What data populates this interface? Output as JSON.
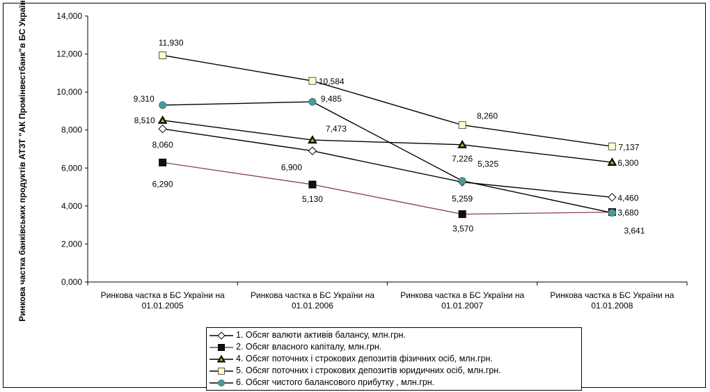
{
  "chart_data": {
    "type": "line",
    "ylabel": "Ринкова частка банківських продуктів АТЗТ \"АК Промінвестбанк\"в БС України в %",
    "xlabel": "",
    "ylim": [
      0,
      14
    ],
    "yticks": [
      "0,000",
      "2,000",
      "4,000",
      "6,000",
      "8,000",
      "10,000",
      "12,000",
      "14,000"
    ],
    "categories": [
      [
        "Ринкова частка в БС України на",
        "01.01.2005"
      ],
      [
        "Ринкова частка в БС України на",
        "01.01.2006"
      ],
      [
        "Ринкова частка в БС України на",
        "01.01.2007"
      ],
      [
        "Ринкова частка в БС України на",
        "01.01.2008"
      ]
    ],
    "series": [
      {
        "name": "1. Обсяг валюти активів балансу, млн.грн.",
        "values": [
          8.06,
          6.9,
          5.259,
          4.46
        ],
        "labels": [
          "8,060",
          "6,900",
          "5,259",
          "4,460"
        ],
        "line_color": "#000000",
        "marker": "diamond",
        "marker_fill": "#ffffff"
      },
      {
        "name": "2. Обсяг власного капіталу, млн.грн.",
        "values": [
          6.29,
          5.13,
          3.57,
          3.68
        ],
        "labels": [
          "6,290",
          "5,130",
          "3,570",
          "3,680"
        ],
        "line_color": "#8b3a62",
        "marker": "square",
        "marker_fill": "#111111"
      },
      {
        "name": "4. Обсяг поточних і строкових депозитів фізичних осіб, млн.грн.",
        "values": [
          8.51,
          7.473,
          7.226,
          6.3
        ],
        "labels": [
          "8,510",
          "7,473",
          "7,226",
          "6,300"
        ],
        "line_color": "#000000",
        "marker": "triangle",
        "marker_fill": "#1a1a1a",
        "marker_inner": "#c8c800"
      },
      {
        "name": "5. Обсяг поточних і строкових депозитів юридичних осіб, млн.грн.",
        "values": [
          11.93,
          10.584,
          8.26,
          7.137
        ],
        "labels": [
          "11,930",
          "10,584",
          "8,260",
          "7,137"
        ],
        "line_color": "#000000",
        "marker": "square",
        "marker_fill": "#ffffcc"
      },
      {
        "name": "6. Обсяг чистого балансового прибутку , млн.грн.",
        "values": [
          9.31,
          9.485,
          5.325,
          3.641
        ],
        "labels": [
          "9,310",
          "9,485",
          "5,325",
          "3,641"
        ],
        "line_color": "#000000",
        "marker": "circle",
        "marker_fill": "#4a9a9a"
      }
    ]
  }
}
